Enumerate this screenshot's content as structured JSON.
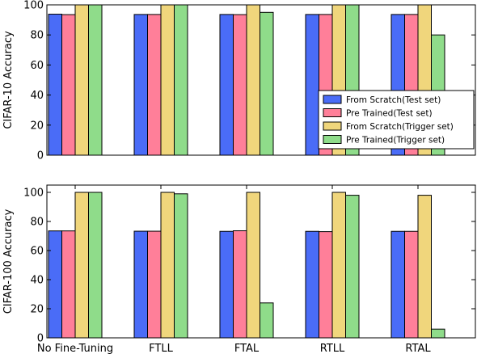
{
  "colors": {
    "from_scratch_test": "#4a6cf7",
    "pre_trained_test": "#ff7f99",
    "from_scratch_trigger": "#f0d67c",
    "pre_trained_trigger": "#8fdc8a",
    "bar_edge": "#000000",
    "axis": "#000000",
    "background": "#ffffff"
  },
  "chart_data": [
    {
      "type": "bar",
      "id": "cifar10",
      "title": "",
      "xlabel": "",
      "ylabel": "CIFAR-10 Accuracy",
      "ylim": [
        0,
        100
      ],
      "yticks": [
        0,
        20,
        40,
        60,
        80,
        100
      ],
      "grid": false,
      "show_x_tick_labels": false,
      "categories": [
        "No Fine-Tuning",
        "FTLL",
        "FTAL",
        "RTLL",
        "RTAL"
      ],
      "series": [
        {
          "name": "From Scratch(Test set)",
          "color_key": "from_scratch_test",
          "values": [
            93.8,
            93.6,
            93.6,
            93.6,
            93.6
          ]
        },
        {
          "name": "Pre Trained(Test set)",
          "color_key": "pre_trained_test",
          "values": [
            93.5,
            93.6,
            93.5,
            93.6,
            93.6
          ]
        },
        {
          "name": "From Scratch(Trigger set)",
          "color_key": "from_scratch_trigger",
          "values": [
            100,
            100,
            100,
            100,
            100
          ]
        },
        {
          "name": "Pre Trained(Trigger set)",
          "color_key": "pre_trained_trigger",
          "values": [
            100,
            100,
            95,
            100,
            80
          ]
        }
      ],
      "legend": {
        "placement": "lower-right"
      }
    },
    {
      "type": "bar",
      "id": "cifar100",
      "title": "",
      "xlabel": "",
      "ylabel": "CIFAR-100 Accuracy",
      "ylim": [
        0,
        105
      ],
      "yticks": [
        0,
        20,
        40,
        60,
        80,
        100
      ],
      "grid": false,
      "show_x_tick_labels": true,
      "categories": [
        "No Fine-Tuning",
        "FTLL",
        "FTAL",
        "RTLL",
        "RTAL"
      ],
      "series": [
        {
          "name": "From Scratch(Test set)",
          "color_key": "from_scratch_test",
          "values": [
            73.5,
            73.3,
            73.2,
            73.2,
            73.2
          ]
        },
        {
          "name": "Pre Trained(Test set)",
          "color_key": "pre_trained_test",
          "values": [
            73.5,
            73.3,
            73.6,
            73.0,
            73.2
          ]
        },
        {
          "name": "From Scratch(Trigger set)",
          "color_key": "from_scratch_trigger",
          "values": [
            100,
            100,
            100,
            100,
            98
          ]
        },
        {
          "name": "Pre Trained(Trigger set)",
          "color_key": "pre_trained_trigger",
          "values": [
            100,
            99,
            24,
            98,
            6
          ]
        }
      ]
    }
  ]
}
